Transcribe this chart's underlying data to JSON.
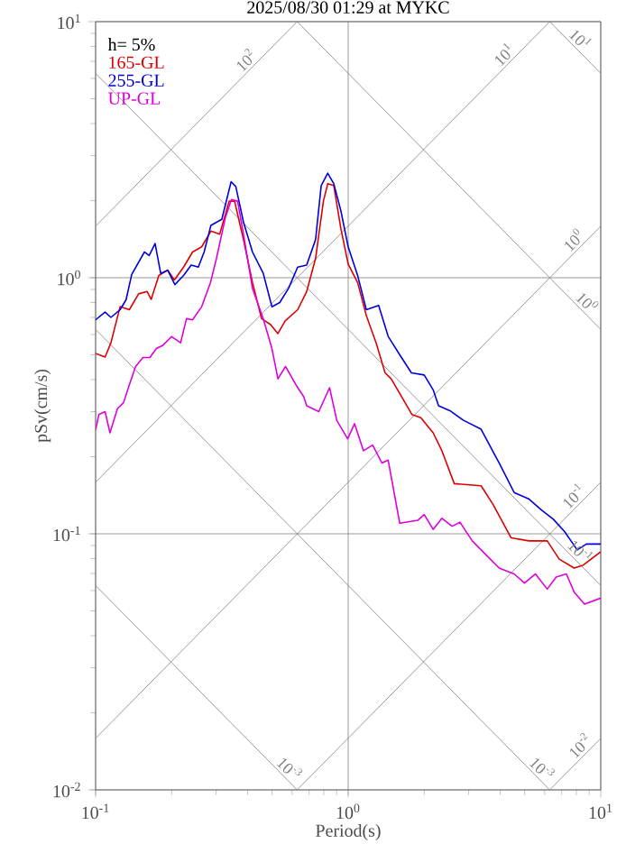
{
  "chart_data": {
    "type": "line",
    "title": "2025/08/30 01:29 at MYKC",
    "xlabel": "Period(s)",
    "ylabel": "pSv(cm/s)",
    "log": "xy",
    "grid": true,
    "legend": "top left",
    "marker": "none",
    "line_style": "solid",
    "xlim": [
      0.1,
      10
    ],
    "ylim": [
      0.01,
      10
    ],
    "xticks": [
      {
        "value": 0.1,
        "label": "10$^{-1}$"
      },
      {
        "value": 1,
        "label": "10$^{0}$"
      },
      {
        "value": 10,
        "label": "10$^{1}$"
      }
    ],
    "yticks": [
      {
        "value": 0.01,
        "label": "10$^{-2}$"
      },
      {
        "value": 0.1,
        "label": "10$^{-1}$"
      },
      {
        "value": 1,
        "label": "10$^{0}$"
      },
      {
        "value": 10,
        "label": "10$^{1}$"
      }
    ],
    "annotations": [
      "h= 5%",
      {
        "text": "10$^{2}$",
        "x": 0.418,
        "y": 6.65
      },
      {
        "text": "10$^{1}$",
        "x": 4.4,
        "y": 7.0
      },
      {
        "text": "10$^{1}$",
        "x": 7.8,
        "y": 8.06
      },
      {
        "text": "10$^{0}$",
        "x": 8.3,
        "y": 1.32
      },
      {
        "text": "10$^{0}$",
        "x": 8.3,
        "y": 0.757
      },
      {
        "text": "10$^{-1}$",
        "x": 8.3,
        "y": 0.132
      },
      {
        "text": "10$^{-1}$",
        "x": 7.8,
        "y": 0.0806
      },
      {
        "text": "10$^{-2}$",
        "x": 8.8,
        "y": 0.014
      },
      {
        "text": "10$^{-3}$",
        "x": 0.55,
        "y": 0.01142
      },
      {
        "text": "10$^{-3}$",
        "x": 5.5,
        "y": 0.01142
      }
    ],
    "series": [
      {
        "color": "#808080",
        "x": [
          6.283,
          10
        ],
        "values": [
          0.01,
          0.0159
        ]
      },
      {
        "color": "#808080",
        "x": [
          0.628,
          10
        ],
        "values": [
          0.01,
          0.159
        ]
      },
      {
        "color": "#808080",
        "x": [
          0.1,
          10
        ],
        "values": [
          0.0159,
          1.59
        ]
      },
      {
        "color": "#808080",
        "x": [
          0.1,
          6.283
        ],
        "values": [
          0.159,
          10
        ]
      },
      {
        "color": "#808080",
        "x": [
          0.1,
          0.628
        ],
        "values": [
          1.59,
          10
        ]
      },
      {
        "color": "#808080",
        "x": [
          0.1,
          0.628
        ],
        "values": [
          0.0628,
          0.01
        ]
      },
      {
        "color": "#808080",
        "x": [
          0.1,
          6.283
        ],
        "values": [
          0.628,
          0.01
        ]
      },
      {
        "color": "#808080",
        "x": [
          0.1,
          10
        ],
        "values": [
          6.28,
          0.0628
        ]
      },
      {
        "color": "#808080",
        "x": [
          0.628,
          10
        ],
        "values": [
          10,
          0.628
        ]
      },
      {
        "color": "#808080",
        "x": [
          6.283,
          10
        ],
        "values": [
          10,
          6.28
        ]
      },
      {
        "name": "165-GL",
        "color": "#dd0000",
        "x": [
          0.1,
          0.109,
          0.115,
          0.125,
          0.136,
          0.148,
          0.16,
          0.166,
          0.178,
          0.193,
          0.205,
          0.223,
          0.242,
          0.263,
          0.286,
          0.31,
          0.338,
          0.355,
          0.385,
          0.418,
          0.454,
          0.493,
          0.527,
          0.563,
          0.631,
          0.685,
          0.743,
          0.798,
          0.83,
          0.877,
          0.935,
          1,
          1.09,
          1.18,
          1.29,
          1.4,
          1.48,
          1.6,
          1.79,
          1.94,
          2.17,
          2.35,
          2.63,
          3.36,
          3.75,
          4.42,
          5.2,
          6.14,
          6.85,
          7.85,
          8.53,
          10
        ],
        "values": [
          0.506,
          0.49,
          0.557,
          0.771,
          0.75,
          0.865,
          0.883,
          0.823,
          1.02,
          1.07,
          0.98,
          1.1,
          1.26,
          1.32,
          1.52,
          1.48,
          1.99,
          1.99,
          1.41,
          0.957,
          0.692,
          0.656,
          0.605,
          0.678,
          0.75,
          0.883,
          1.19,
          1.99,
          2.33,
          2.29,
          1.56,
          1.13,
          0.957,
          0.711,
          0.557,
          0.425,
          0.403,
          0.353,
          0.292,
          0.284,
          0.248,
          0.211,
          0.157,
          0.154,
          0.13,
          0.0964,
          0.0938,
          0.0938,
          0.0796,
          0.0735,
          0.0755,
          0.0851
        ]
      },
      {
        "name": "255-GL",
        "color": "#0000dd",
        "x": [
          0.1,
          0.109,
          0.115,
          0.125,
          0.132,
          0.139,
          0.156,
          0.163,
          0.172,
          0.181,
          0.193,
          0.206,
          0.223,
          0.239,
          0.255,
          0.269,
          0.286,
          0.316,
          0.344,
          0.359,
          0.385,
          0.418,
          0.461,
          0.499,
          0.536,
          0.581,
          0.631,
          0.685,
          0.743,
          0.782,
          0.83,
          0.877,
          0.935,
          1,
          1.09,
          1.18,
          1.32,
          1.44,
          1.6,
          1.78,
          2.0,
          2.17,
          2.28,
          2.55,
          2.85,
          3.36,
          3.96,
          4.54,
          5.18,
          5.81,
          6.49,
          7.19,
          8.07,
          8.77,
          10
        ],
        "values": [
          0.685,
          0.734,
          0.7,
          0.75,
          0.82,
          1.03,
          1.26,
          1.22,
          1.36,
          1.04,
          1.07,
          0.94,
          1.02,
          1.12,
          1.1,
          1.26,
          1.6,
          1.69,
          2.37,
          2.27,
          1.65,
          1.26,
          1.04,
          0.77,
          0.8,
          0.91,
          1.1,
          1.12,
          1.41,
          2.29,
          2.56,
          2.33,
          1.83,
          1.32,
          1.02,
          0.75,
          0.78,
          0.59,
          0.5,
          0.425,
          0.417,
          0.365,
          0.316,
          0.301,
          0.278,
          0.256,
          0.189,
          0.145,
          0.137,
          0.124,
          0.114,
          0.102,
          0.0865,
          0.0912,
          0.0912
        ]
      },
      {
        "name": "UP-GL",
        "color": "#dd00dd",
        "x": [
          0.1,
          0.103,
          0.109,
          0.114,
          0.122,
          0.129,
          0.136,
          0.144,
          0.154,
          0.164,
          0.174,
          0.184,
          0.2,
          0.217,
          0.229,
          0.242,
          0.263,
          0.285,
          0.301,
          0.327,
          0.345,
          0.365,
          0.385,
          0.418,
          0.461,
          0.499,
          0.527,
          0.565,
          0.621,
          0.667,
          0.685,
          0.765,
          0.844,
          0.902,
          0.995,
          1.06,
          1.15,
          1.25,
          1.36,
          1.44,
          1.6,
          1.89,
          2.0,
          2.17,
          2.35,
          2.58,
          2.77,
          3.1,
          3.55,
          3.96,
          4.54,
          4.99,
          5.51,
          6.14,
          6.66,
          7.31,
          7.85,
          8.63,
          10
        ],
        "values": [
          0.255,
          0.292,
          0.3,
          0.248,
          0.308,
          0.325,
          0.382,
          0.45,
          0.488,
          0.488,
          0.529,
          0.543,
          0.589,
          0.557,
          0.692,
          0.685,
          0.771,
          0.957,
          1.19,
          1.73,
          2.02,
          1.99,
          1.48,
          0.907,
          0.692,
          0.529,
          0.403,
          0.45,
          0.382,
          0.343,
          0.316,
          0.3,
          0.372,
          0.277,
          0.235,
          0.269,
          0.211,
          0.222,
          0.189,
          0.194,
          0.11,
          0.113,
          0.119,
          0.104,
          0.115,
          0.107,
          0.111,
          0.0938,
          0.0819,
          0.0735,
          0.0697,
          0.0642,
          0.0697,
          0.0608,
          0.0678,
          0.0697,
          0.0592,
          0.0531,
          0.0561
        ]
      }
    ]
  }
}
